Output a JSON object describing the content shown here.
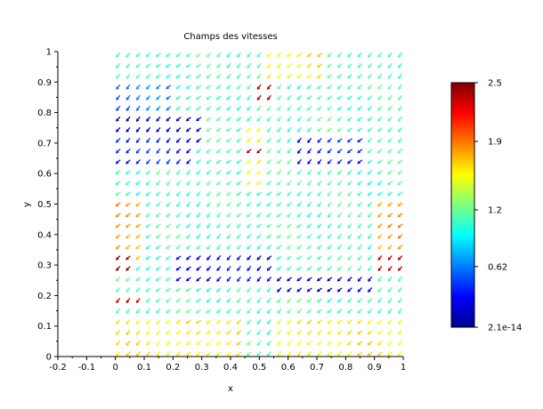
{
  "chart_data": {
    "type": "quiver",
    "title": "Champs des vitesses",
    "xlabel": "x",
    "ylabel": "y",
    "xlim": [
      -0.2,
      1.0
    ],
    "ylim": [
      0,
      1.0
    ],
    "x_ticks": [
      "-0.2",
      "-0.1",
      "0",
      "0.1",
      "0.2",
      "0.3",
      "0.4",
      "0.5",
      "0.6",
      "0.7",
      "0.8",
      "0.9",
      "1"
    ],
    "y_ticks": [
      "0",
      "0.1",
      "0.2",
      "0.3",
      "0.4",
      "0.5",
      "0.6",
      "0.7",
      "0.8",
      "0.9",
      "1"
    ],
    "grid": false,
    "colorbar": {
      "colormap": "jet",
      "min": 2.1e-14,
      "max": 2.5,
      "tick_labels": [
        "2.5",
        "1.9",
        "1.2",
        "0.62",
        "2.1e-14"
      ],
      "tick_values": [
        2.5,
        1.9,
        1.2,
        0.62,
        0
      ]
    },
    "field": {
      "x_range": [
        0,
        0.98
      ],
      "y_range": [
        0,
        0.98
      ],
      "nx": 29,
      "ny": 29,
      "direction": "down-left (approx. -135 degrees)",
      "magnitude_regions": [
        {
          "x": [
            0.0,
            1.0
          ],
          "y": [
            0.0,
            1.0
          ],
          "level": 1.1
        },
        {
          "x": [
            0.0,
            0.45
          ],
          "y": [
            0.0,
            0.12
          ],
          "level": 1.6
        },
        {
          "x": [
            0.55,
            1.0
          ],
          "y": [
            0.0,
            0.12
          ],
          "level": 1.6
        },
        {
          "x": [
            0.0,
            0.1
          ],
          "y": [
            0.3,
            0.5
          ],
          "level": 1.8
        },
        {
          "x": [
            0.0,
            0.05
          ],
          "y": [
            0.26,
            0.33
          ],
          "level": 2.4
        },
        {
          "x": [
            0.0,
            0.1
          ],
          "y": [
            0.15,
            0.2
          ],
          "level": 2.3
        },
        {
          "x": [
            0.9,
            1.0
          ],
          "y": [
            0.25,
            0.5
          ],
          "level": 1.8
        },
        {
          "x": [
            0.9,
            1.0
          ],
          "y": [
            0.27,
            0.33
          ],
          "level": 2.4
        },
        {
          "x": [
            0.0,
            0.3
          ],
          "y": [
            0.7,
            0.78
          ],
          "level": 0.2
        },
        {
          "x": [
            0.0,
            0.25
          ],
          "y": [
            0.62,
            0.72
          ],
          "level": 0.4
        },
        {
          "x": [
            0.2,
            0.55
          ],
          "y": [
            0.22,
            0.33
          ],
          "level": 0.3
        },
        {
          "x": [
            0.55,
            0.9
          ],
          "y": [
            0.18,
            0.25
          ],
          "level": 0.2
        },
        {
          "x": [
            0.6,
            0.85
          ],
          "y": [
            0.6,
            0.72
          ],
          "level": 0.4
        },
        {
          "x": [
            0.0,
            0.2
          ],
          "y": [
            0.78,
            0.9
          ],
          "level": 0.6
        },
        {
          "x": [
            0.43,
            0.52
          ],
          "y": [
            0.55,
            0.75
          ],
          "level": 1.6
        },
        {
          "x": [
            0.45,
            0.52
          ],
          "y": [
            0.63,
            0.68
          ],
          "level": 2.4
        },
        {
          "x": [
            0.48,
            0.55
          ],
          "y": [
            0.82,
            0.9
          ],
          "level": 2.3
        },
        {
          "x": [
            0.5,
            0.7
          ],
          "y": [
            0.9,
            1.0
          ],
          "level": 1.6
        }
      ]
    }
  }
}
